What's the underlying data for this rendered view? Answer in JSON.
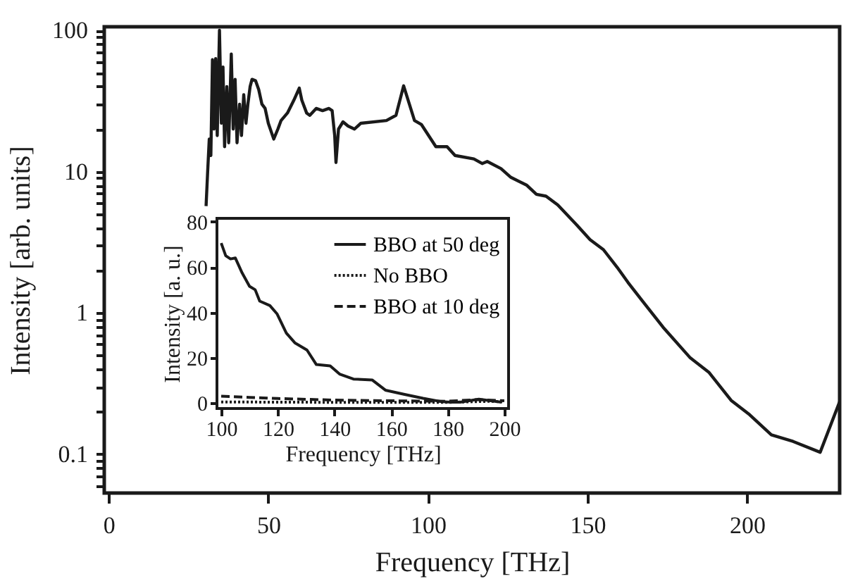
{
  "chart_data": [
    {
      "type": "line",
      "xlabel": "Frequency [THz]",
      "ylabel": "Intensity [arb. units]",
      "color": "#1a1a1a",
      "log": "y",
      "line_style": "solid",
      "grid": false,
      "x": [
        30.5,
        31,
        31.5,
        32,
        32.5,
        33,
        33.5,
        34,
        34.7,
        35.3,
        35.8,
        36.3,
        37,
        37.6,
        38.4,
        39,
        39.6,
        40.2,
        41,
        41.6,
        42.3,
        43,
        43.6,
        44.3,
        44.9,
        46,
        47,
        48,
        49,
        50,
        51.7,
        53,
        54,
        56,
        58,
        59.7,
        60.5,
        62,
        63,
        65,
        67,
        69,
        70,
        70.8,
        71.2,
        72,
        73.4,
        75,
        77,
        79,
        87,
        90,
        92.4,
        95.8,
        98,
        102.5,
        106,
        108.5,
        114.4,
        117,
        118.6,
        122.9,
        126,
        131,
        134,
        137,
        140.7,
        146.6,
        150.8,
        155,
        159.3,
        162.7,
        167,
        173.7,
        182.2,
        188,
        195,
        200.8,
        207.6,
        214.4,
        222.9,
        229
      ],
      "values": [
        5.7,
        10,
        17,
        13,
        62,
        20,
        63,
        18,
        100,
        22,
        55,
        15,
        40,
        16,
        68,
        20,
        45,
        16,
        30,
        18,
        35,
        22,
        30,
        40,
        45,
        44,
        38,
        30,
        28,
        22,
        17,
        20,
        23,
        26,
        32,
        39,
        32,
        26,
        25,
        28,
        27,
        28,
        27,
        18,
        11.6,
        20,
        22.5,
        21,
        20,
        22,
        23,
        25,
        40.5,
        23,
        21.5,
        15,
        15,
        13,
        12.3,
        11.4,
        11.8,
        10.5,
        9.1,
        8,
        6.9,
        6.7,
        5.8,
        4.2,
        3.3,
        2.8,
        2.1,
        1.64,
        1.23,
        0.79,
        0.48,
        0.38,
        0.24,
        0.19,
        0.137,
        0.123,
        0.103,
        0.235
      ],
      "xlim": [
        -1.4,
        229
      ],
      "ylim": [
        0.053,
        106
      ],
      "xticks": [
        0,
        50,
        100,
        150,
        200
      ],
      "yticks": [
        {
          "value": 0.06,
          "label": null
        },
        {
          "value": 0.07,
          "label": null
        },
        {
          "value": 0.08,
          "label": null
        },
        {
          "value": 0.09,
          "label": null
        },
        0.1,
        {
          "value": 0.2,
          "label": null
        },
        {
          "value": 0.3,
          "label": null
        },
        {
          "value": 0.4,
          "label": null
        },
        {
          "value": 0.5,
          "label": null
        },
        {
          "value": 0.6,
          "label": null
        },
        {
          "value": 0.7,
          "label": null
        },
        {
          "value": 0.8,
          "label": null
        },
        {
          "value": 0.9,
          "label": null
        },
        1,
        {
          "value": 2,
          "label": null
        },
        {
          "value": 3,
          "label": null
        },
        {
          "value": 4,
          "label": null
        },
        {
          "value": 5,
          "label": null
        },
        {
          "value": 6,
          "label": null
        },
        {
          "value": 7,
          "label": null
        },
        {
          "value": 8,
          "label": null
        },
        {
          "value": 9,
          "label": null
        },
        10,
        {
          "value": 20,
          "label": null
        },
        {
          "value": 30,
          "label": null
        },
        {
          "value": 40,
          "label": null
        },
        {
          "value": 50,
          "label": null
        },
        {
          "value": 60,
          "label": null
        },
        {
          "value": 70,
          "label": null
        },
        {
          "value": 80,
          "label": null
        },
        {
          "value": 90,
          "label": null
        },
        100
      ]
    },
    {
      "type": "line",
      "xlabel": "Frequency [THz]",
      "ylabel": "Intensity [a. u.]",
      "legend": "top right",
      "grid": false,
      "xlim": [
        98.5,
        201.5
      ],
      "ylim": [
        -2.4,
        81.5
      ],
      "xticks": [
        100,
        120,
        140,
        160,
        180,
        200
      ],
      "yticks": [
        0,
        20,
        40,
        60,
        80
      ],
      "series": [
        {
          "name": "BBO at 50 deg",
          "color": "#1a1a1a",
          "line_style": "solid",
          "x": [
            100,
            101.6,
            103.3,
            105,
            107.4,
            110,
            112,
            113.6,
            117.2,
            119.7,
            123,
            126,
            130.3,
            133.6,
            138.5,
            141.8,
            146.7,
            153.3,
            158,
            164.8,
            171.3,
            177.9,
            181,
            184.4,
            191,
            199
          ],
          "values": [
            70.6,
            65,
            63.6,
            64,
            57.4,
            51.5,
            50,
            45,
            43,
            39.4,
            30.9,
            26.6,
            23.4,
            17,
            16.4,
            12.8,
            10.6,
            10.2,
            5.7,
            3.8,
            2.1,
            0.6,
            0.4,
            0.4,
            1.7,
            0.4
          ]
        },
        {
          "name": "No BBO",
          "color": "#1a1a1a",
          "line_style": "dotted",
          "x": [
            100,
            120,
            150,
            180,
            195,
            200
          ],
          "values": [
            0.5,
            0.4,
            0.3,
            0.3,
            0.8,
            0.5
          ]
        },
        {
          "name": "BBO at 10 deg",
          "color": "#1a1a1a",
          "line_style": "dashed",
          "x": [
            100,
            110,
            120,
            140,
            160,
            180,
            190,
            200
          ],
          "values": [
            3,
            2.5,
            2,
            1.3,
            1,
            0.8,
            1.5,
            1
          ]
        }
      ]
    }
  ]
}
